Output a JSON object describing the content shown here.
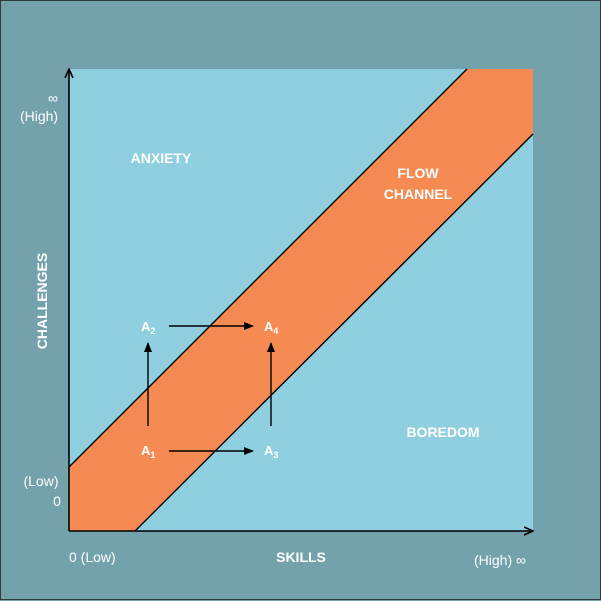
{
  "axes": {
    "y_label": "CHALLENGES",
    "x_label": "SKILLS",
    "y_high_symbol": "∞",
    "y_high_text": "(High)",
    "y_low_text": "(Low)",
    "y_low_value": "0",
    "x_low_text": "0 (Low)",
    "x_high_text": "(High) ∞"
  },
  "regions": {
    "anxiety": "ANXIETY",
    "flow_line1": "FLOW",
    "flow_line2": "CHANNEL",
    "boredom": "BOREDOM"
  },
  "points": {
    "a1": {
      "base": "A",
      "sub": "1"
    },
    "a2": {
      "base": "A",
      "sub": "2"
    },
    "a3": {
      "base": "A",
      "sub": "3"
    },
    "a4": {
      "base": "A",
      "sub": "4"
    }
  },
  "colors": {
    "background": "#74a2ac",
    "plot": "#8fcfe0",
    "flow_band": "#f58a52",
    "text": "#ffffff",
    "lines": "#000000"
  }
}
